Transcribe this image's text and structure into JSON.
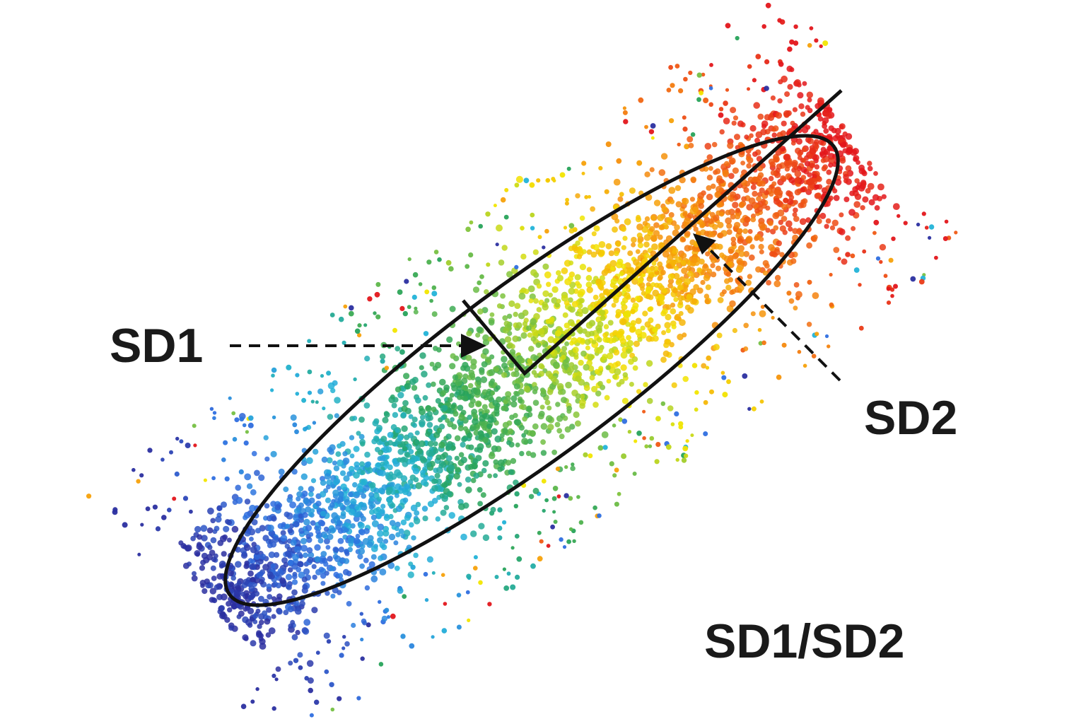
{
  "diagram": {
    "labels": {
      "sd1": "SD1",
      "sd2": "SD2",
      "ratio": "SD1/SD2"
    },
    "colors": {
      "outline": "#111111",
      "label": "#1a1a1a",
      "gradient": [
        "#2b2fa0",
        "#2f6fe0",
        "#22b3d8",
        "#27a35a",
        "#76c043",
        "#f2e600",
        "#f7a10a",
        "#f05a14",
        "#e3161b"
      ]
    },
    "icons": [
      "sd1-arrowhead-icon",
      "sd2-arrowhead-icon"
    ]
  }
}
